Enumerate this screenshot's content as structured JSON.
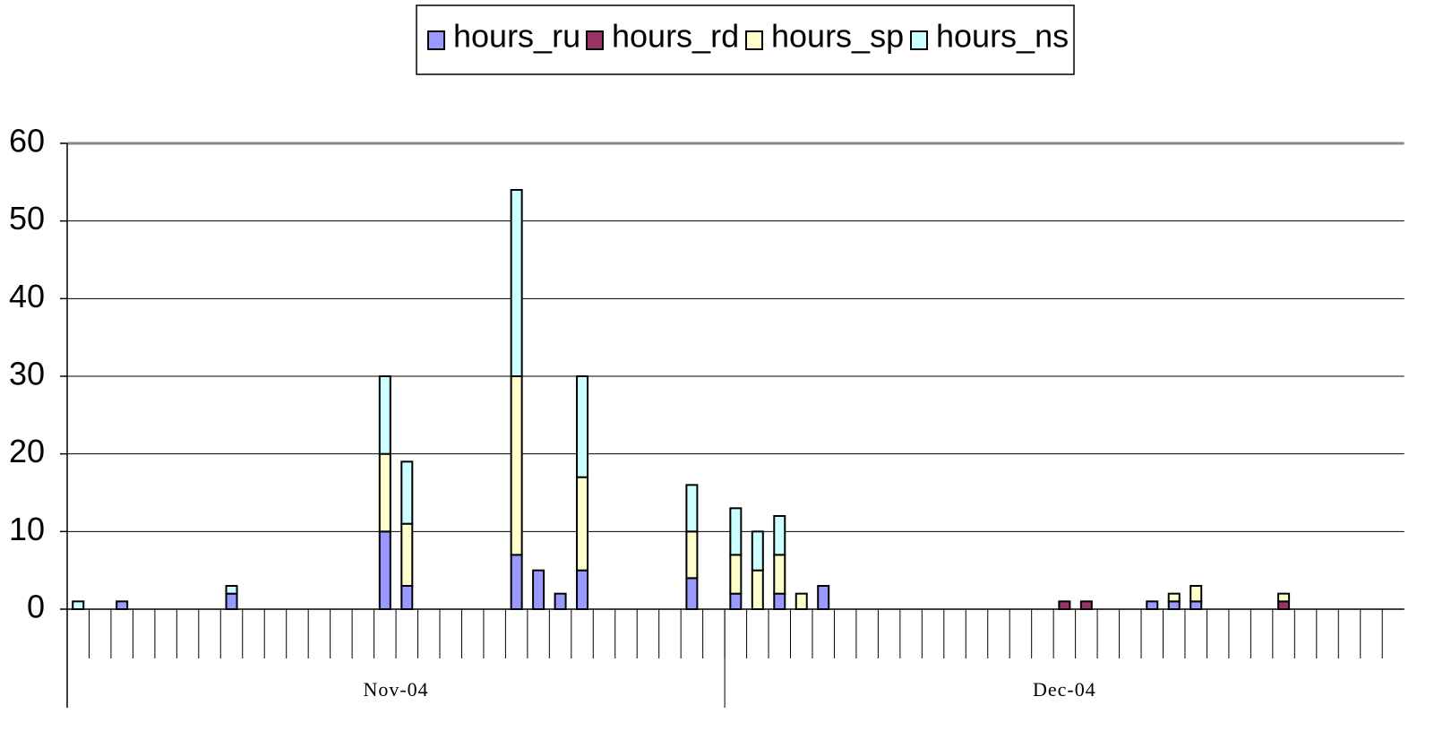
{
  "chart_data": {
    "type": "stacked-bar",
    "categories": [
      null,
      null,
      null,
      null,
      null,
      null,
      null,
      null,
      null,
      null,
      null,
      null,
      null,
      null,
      null,
      null,
      null,
      null,
      null,
      null,
      null,
      null,
      null,
      null,
      null,
      null,
      null,
      null,
      null,
      null,
      null,
      null,
      null,
      null,
      null,
      null,
      null,
      null,
      null,
      null,
      null,
      null,
      null,
      null,
      null,
      null,
      null,
      null,
      null,
      null,
      null,
      null,
      null,
      null,
      null,
      null,
      null,
      null,
      null,
      null,
      null
    ],
    "groups": [
      {
        "label": "Nov-04",
        "size": 30
      },
      {
        "label": "Dec-04",
        "size": 31
      }
    ],
    "series": [
      {
        "name": "hours_ru",
        "color": "#9999ff",
        "values": [
          0,
          0,
          1,
          0,
          0,
          0,
          0,
          2,
          0,
          0,
          0,
          0,
          0,
          0,
          10,
          3,
          0,
          0,
          0,
          0,
          7,
          5,
          2,
          5,
          0,
          0,
          0,
          0,
          4,
          0,
          2,
          0,
          2,
          0,
          3,
          0,
          0,
          0,
          0,
          0,
          0,
          0,
          0,
          0,
          0,
          0,
          0,
          0,
          0,
          1,
          1,
          1,
          0,
          0,
          0,
          0,
          0,
          0,
          0,
          0,
          0
        ]
      },
      {
        "name": "hours_rd",
        "color": "#993366",
        "values": [
          0,
          0,
          0,
          0,
          0,
          0,
          0,
          0,
          0,
          0,
          0,
          0,
          0,
          0,
          0,
          0,
          0,
          0,
          0,
          0,
          0,
          0,
          0,
          0,
          0,
          0,
          0,
          0,
          0,
          0,
          0,
          0,
          0,
          0,
          0,
          0,
          0,
          0,
          0,
          0,
          0,
          0,
          0,
          0,
          0,
          1,
          1,
          0,
          0,
          0,
          0,
          0,
          0,
          0,
          0,
          1,
          0,
          0,
          0,
          0,
          0
        ]
      },
      {
        "name": "hours_sp",
        "color": "#ffffcc",
        "values": [
          0,
          0,
          0,
          0,
          0,
          0,
          0,
          0,
          0,
          0,
          0,
          0,
          0,
          0,
          10,
          8,
          0,
          0,
          0,
          0,
          23,
          0,
          0,
          12,
          0,
          0,
          0,
          0,
          6,
          0,
          5,
          5,
          5,
          2,
          0,
          0,
          0,
          0,
          0,
          0,
          0,
          0,
          0,
          0,
          0,
          0,
          0,
          0,
          0,
          0,
          1,
          2,
          0,
          0,
          0,
          1,
          0,
          0,
          0,
          0,
          0
        ]
      },
      {
        "name": "hours_ns",
        "color": "#ccffff",
        "values": [
          1,
          0,
          0,
          0,
          0,
          0,
          0,
          1,
          0,
          0,
          0,
          0,
          0,
          0,
          10,
          8,
          0,
          0,
          0,
          0,
          24,
          0,
          0,
          13,
          0,
          0,
          0,
          0,
          6,
          0,
          6,
          5,
          5,
          0,
          0,
          0,
          0,
          0,
          0,
          0,
          0,
          0,
          0,
          0,
          0,
          0,
          0,
          0,
          0,
          0,
          0,
          0,
          0,
          0,
          0,
          0,
          0,
          0,
          0,
          0,
          0
        ]
      }
    ],
    "ylim": [
      0,
      60
    ],
    "yticks": [
      0,
      10,
      20,
      30,
      40,
      50,
      60
    ],
    "grid": true
  }
}
